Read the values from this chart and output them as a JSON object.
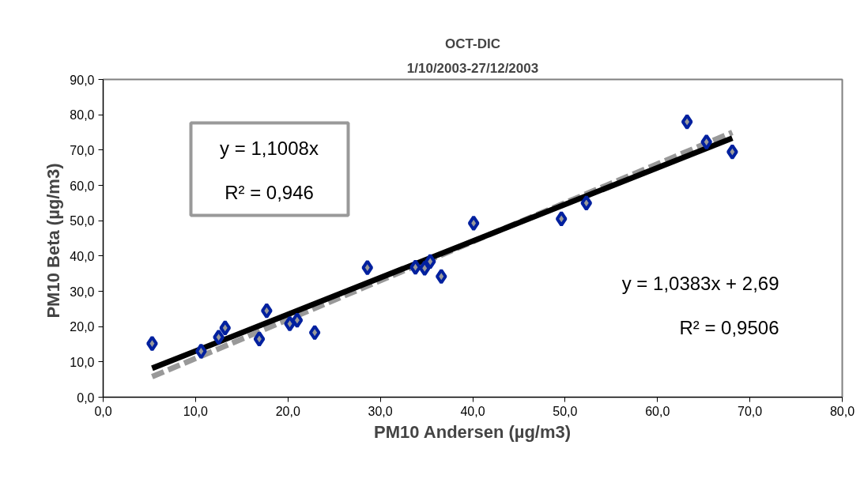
{
  "chart_data": {
    "type": "scatter",
    "title": "OCT-DIC",
    "subtitle": "1/10/2003-27/12/2003",
    "xlabel": "PM10 Andersen (µg/m3)",
    "ylabel": "PM10 Beta  (µg/m3)",
    "xlim": [
      0,
      80
    ],
    "ylim": [
      0,
      90
    ],
    "xticks": [
      {
        "value": 0,
        "label": "0,0"
      },
      {
        "value": 10,
        "label": "10,0"
      },
      {
        "value": 20,
        "label": "20,0"
      },
      {
        "value": 30,
        "label": "30,0"
      },
      {
        "value": 40,
        "label": "40,0"
      },
      {
        "value": 50,
        "label": "50,0"
      },
      {
        "value": 60,
        "label": "60,0"
      },
      {
        "value": 70,
        "label": "70,0"
      },
      {
        "value": 80,
        "label": "80,0"
      }
    ],
    "yticks": [
      {
        "value": 0,
        "label": "0,0"
      },
      {
        "value": 10,
        "label": "10,0"
      },
      {
        "value": 20,
        "label": "20,0"
      },
      {
        "value": 30,
        "label": "30,0"
      },
      {
        "value": 40,
        "label": "40,0"
      },
      {
        "value": 50,
        "label": "50,0"
      },
      {
        "value": 60,
        "label": "60,0"
      },
      {
        "value": 70,
        "label": "70,0"
      },
      {
        "value": 80,
        "label": "80,0"
      },
      {
        "value": 90,
        "label": "90,0"
      }
    ],
    "grid": false,
    "marker": "diamond",
    "series": [
      {
        "color": "#00209f",
        "x": [
          5.3,
          10.6,
          12.5,
          13.2,
          16.9,
          17.7,
          20.2,
          21.0,
          22.9,
          28.6,
          33.8,
          34.8,
          35.4,
          36.6,
          40.1,
          49.6,
          52.3,
          63.2,
          65.3,
          68.1
        ],
        "values": [
          15.2,
          13.0,
          17.0,
          19.6,
          16.5,
          24.5,
          20.8,
          21.8,
          18.3,
          36.7,
          36.8,
          36.5,
          38.4,
          34.2,
          49.3,
          50.5,
          55.0,
          78.0,
          72.3,
          69.5
        ]
      },
      {
        "type": "line",
        "color": "#999999",
        "line_style": "dashed",
        "marker": "none",
        "x": [
          5.3,
          68.1
        ],
        "values": [
          5.8,
          75.0
        ]
      },
      {
        "type": "line",
        "color": "#000000",
        "line_style": "solid",
        "marker": "none",
        "x": [
          5.3,
          68.1
        ],
        "values": [
          8.2,
          73.4
        ]
      }
    ],
    "annotations": [
      "y = 1,1008x\nR² = 0,946",
      "y = 1,0383x + 2,69\nR² = 0,9506"
    ]
  }
}
